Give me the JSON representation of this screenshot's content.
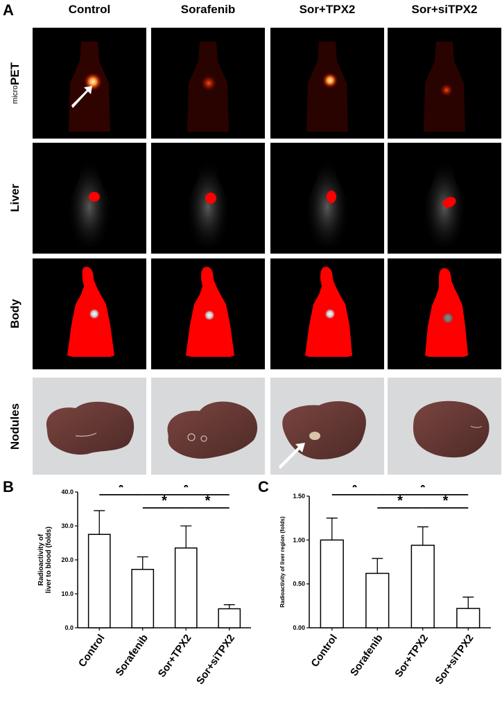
{
  "panels": {
    "a": "A",
    "b": "B",
    "c": "C"
  },
  "columns": [
    "Control",
    "Sorafenib",
    "Sor+TPX2",
    "Sor+siTPX2"
  ],
  "rows": {
    "pet_prefix": "micro",
    "pet_main": "PET",
    "liver": "Liver",
    "body": "Body",
    "nodules": "Nodules"
  },
  "colors": {
    "bar_fill": "#ffffff",
    "bar_stroke": "#000000",
    "roi_red": "#ff0000",
    "tissue": "#6e3d38"
  },
  "chart_data": [
    {
      "type": "bar",
      "categories": [
        "Control",
        "Sorafenib",
        "Sor+TPX2",
        "Sor+siTPX2"
      ],
      "values": [
        27.5,
        17.2,
        23.5,
        5.6
      ],
      "errors": [
        7.0,
        3.7,
        6.5,
        1.2
      ],
      "ylabel": [
        "Radioactivity of",
        "liver to blood (folds)"
      ],
      "ylim": [
        0,
        40
      ],
      "yticks": [
        "0.0",
        "10.0",
        "20.0",
        "30.0",
        "40.0"
      ],
      "significance": [
        {
          "pair": [
            "Control",
            "Sorafenib"
          ],
          "label": "*"
        },
        {
          "pair": [
            "Sorafenib",
            "Sor+TPX2"
          ],
          "label": "*"
        },
        {
          "pair": [
            "Sor+TPX2",
            "Sor+siTPX2"
          ],
          "label": "*"
        },
        {
          "pair": [
            "Sorafenib",
            "Sor+siTPX2"
          ],
          "label": "*"
        }
      ]
    },
    {
      "type": "bar",
      "categories": [
        "Control",
        "Sorafenib",
        "Sor+TPX2",
        "Sor+siTPX2"
      ],
      "values": [
        1.0,
        0.62,
        0.94,
        0.22
      ],
      "errors": [
        0.25,
        0.17,
        0.21,
        0.13
      ],
      "ylabel": [
        "Radioactivity of liver region (folds)"
      ],
      "ylim": [
        0,
        1.5
      ],
      "yticks": [
        "0.00",
        "0.50",
        "1.00",
        "1.50"
      ],
      "significance": [
        {
          "pair": [
            "Control",
            "Sorafenib"
          ],
          "label": "*"
        },
        {
          "pair": [
            "Sorafenib",
            "Sor+TPX2"
          ],
          "label": "*"
        },
        {
          "pair": [
            "Sor+TPX2",
            "Sor+siTPX2"
          ],
          "label": "*"
        },
        {
          "pair": [
            "Sorafenib",
            "Sor+siTPX2"
          ],
          "label": "*"
        }
      ]
    }
  ]
}
